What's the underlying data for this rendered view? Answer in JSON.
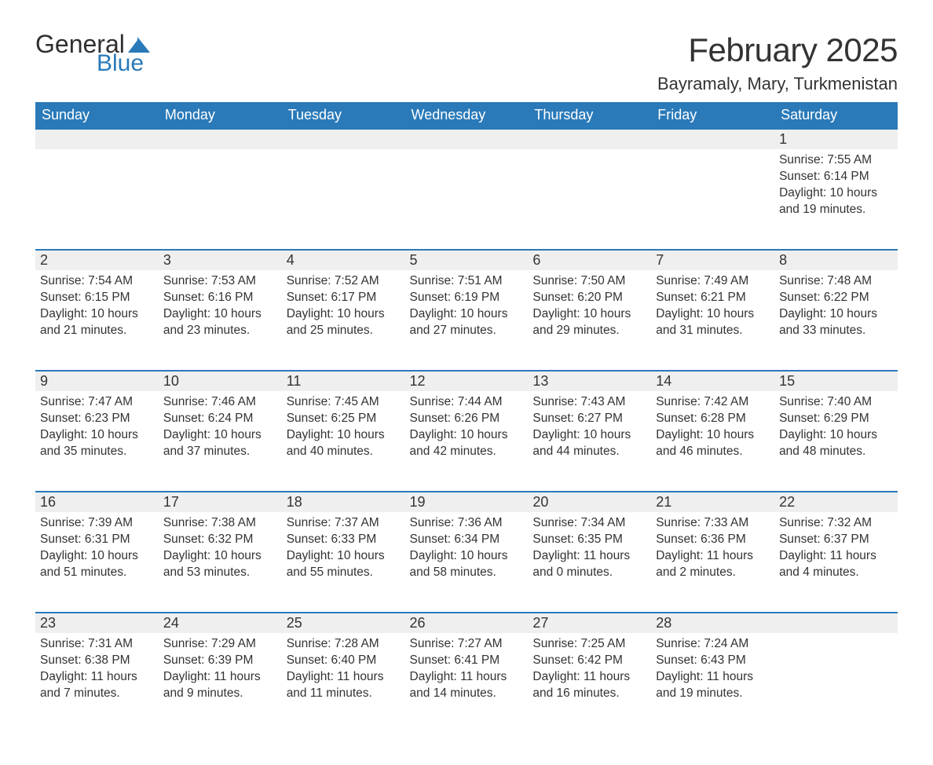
{
  "logo": {
    "word1": "General",
    "word2": "Blue",
    "shape_color": "#2a7ab9"
  },
  "title": "February 2025",
  "location": "Bayramaly, Mary, Turkmenistan",
  "colors": {
    "header_bg": "#2a7ab9",
    "header_text": "#ffffff",
    "row_divider": "#2a7ab9",
    "daynum_bg": "#efefef",
    "text": "#333333",
    "background": "#ffffff"
  },
  "typography": {
    "title_fontsize": 42,
    "location_fontsize": 22,
    "header_fontsize": 18,
    "daynum_fontsize": 18,
    "body_fontsize": 15.5
  },
  "weekdays": [
    "Sunday",
    "Monday",
    "Tuesday",
    "Wednesday",
    "Thursday",
    "Friday",
    "Saturday"
  ],
  "weeks": [
    [
      null,
      null,
      null,
      null,
      null,
      null,
      {
        "n": "1",
        "sunrise": "7:55 AM",
        "sunset": "6:14 PM",
        "daylight": "10 hours and 19 minutes."
      }
    ],
    [
      {
        "n": "2",
        "sunrise": "7:54 AM",
        "sunset": "6:15 PM",
        "daylight": "10 hours and 21 minutes."
      },
      {
        "n": "3",
        "sunrise": "7:53 AM",
        "sunset": "6:16 PM",
        "daylight": "10 hours and 23 minutes."
      },
      {
        "n": "4",
        "sunrise": "7:52 AM",
        "sunset": "6:17 PM",
        "daylight": "10 hours and 25 minutes."
      },
      {
        "n": "5",
        "sunrise": "7:51 AM",
        "sunset": "6:19 PM",
        "daylight": "10 hours and 27 minutes."
      },
      {
        "n": "6",
        "sunrise": "7:50 AM",
        "sunset": "6:20 PM",
        "daylight": "10 hours and 29 minutes."
      },
      {
        "n": "7",
        "sunrise": "7:49 AM",
        "sunset": "6:21 PM",
        "daylight": "10 hours and 31 minutes."
      },
      {
        "n": "8",
        "sunrise": "7:48 AM",
        "sunset": "6:22 PM",
        "daylight": "10 hours and 33 minutes."
      }
    ],
    [
      {
        "n": "9",
        "sunrise": "7:47 AM",
        "sunset": "6:23 PM",
        "daylight": "10 hours and 35 minutes."
      },
      {
        "n": "10",
        "sunrise": "7:46 AM",
        "sunset": "6:24 PM",
        "daylight": "10 hours and 37 minutes."
      },
      {
        "n": "11",
        "sunrise": "7:45 AM",
        "sunset": "6:25 PM",
        "daylight": "10 hours and 40 minutes."
      },
      {
        "n": "12",
        "sunrise": "7:44 AM",
        "sunset": "6:26 PM",
        "daylight": "10 hours and 42 minutes."
      },
      {
        "n": "13",
        "sunrise": "7:43 AM",
        "sunset": "6:27 PM",
        "daylight": "10 hours and 44 minutes."
      },
      {
        "n": "14",
        "sunrise": "7:42 AM",
        "sunset": "6:28 PM",
        "daylight": "10 hours and 46 minutes."
      },
      {
        "n": "15",
        "sunrise": "7:40 AM",
        "sunset": "6:29 PM",
        "daylight": "10 hours and 48 minutes."
      }
    ],
    [
      {
        "n": "16",
        "sunrise": "7:39 AM",
        "sunset": "6:31 PM",
        "daylight": "10 hours and 51 minutes."
      },
      {
        "n": "17",
        "sunrise": "7:38 AM",
        "sunset": "6:32 PM",
        "daylight": "10 hours and 53 minutes."
      },
      {
        "n": "18",
        "sunrise": "7:37 AM",
        "sunset": "6:33 PM",
        "daylight": "10 hours and 55 minutes."
      },
      {
        "n": "19",
        "sunrise": "7:36 AM",
        "sunset": "6:34 PM",
        "daylight": "10 hours and 58 minutes."
      },
      {
        "n": "20",
        "sunrise": "7:34 AM",
        "sunset": "6:35 PM",
        "daylight": "11 hours and 0 minutes."
      },
      {
        "n": "21",
        "sunrise": "7:33 AM",
        "sunset": "6:36 PM",
        "daylight": "11 hours and 2 minutes."
      },
      {
        "n": "22",
        "sunrise": "7:32 AM",
        "sunset": "6:37 PM",
        "daylight": "11 hours and 4 minutes."
      }
    ],
    [
      {
        "n": "23",
        "sunrise": "7:31 AM",
        "sunset": "6:38 PM",
        "daylight": "11 hours and 7 minutes."
      },
      {
        "n": "24",
        "sunrise": "7:29 AM",
        "sunset": "6:39 PM",
        "daylight": "11 hours and 9 minutes."
      },
      {
        "n": "25",
        "sunrise": "7:28 AM",
        "sunset": "6:40 PM",
        "daylight": "11 hours and 11 minutes."
      },
      {
        "n": "26",
        "sunrise": "7:27 AM",
        "sunset": "6:41 PM",
        "daylight": "11 hours and 14 minutes."
      },
      {
        "n": "27",
        "sunrise": "7:25 AM",
        "sunset": "6:42 PM",
        "daylight": "11 hours and 16 minutes."
      },
      {
        "n": "28",
        "sunrise": "7:24 AM",
        "sunset": "6:43 PM",
        "daylight": "11 hours and 19 minutes."
      },
      null
    ]
  ],
  "labels": {
    "sunrise": "Sunrise:",
    "sunset": "Sunset:",
    "daylight": "Daylight:"
  }
}
